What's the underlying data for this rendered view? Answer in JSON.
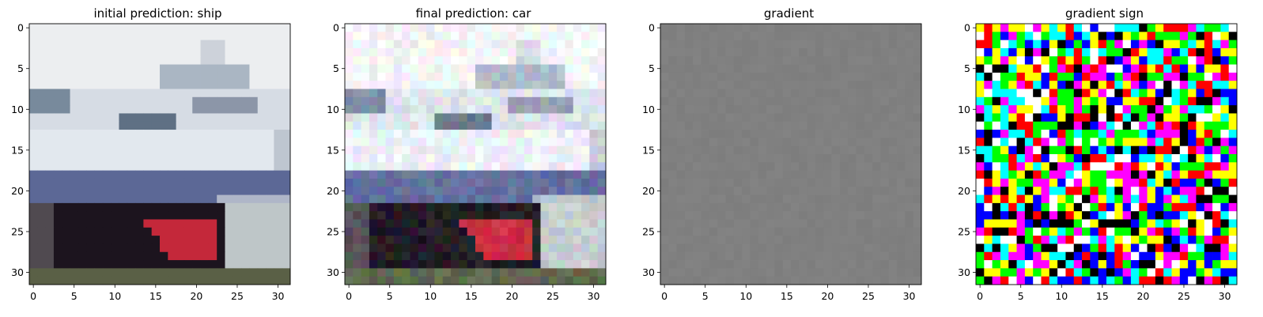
{
  "chart_data": [
    {
      "type": "heatmap",
      "title": "initial prediction: ship",
      "xlabel": "",
      "ylabel": "",
      "xlim": [
        -0.5,
        31.5
      ],
      "ylim": [
        31.5,
        -0.5
      ],
      "xticks": [
        "0",
        "5",
        "10",
        "15",
        "20",
        "25",
        "30"
      ],
      "yticks": [
        "0",
        "5",
        "10",
        "15",
        "20",
        "25",
        "30"
      ],
      "image_size": [
        32,
        32
      ],
      "content": "photo of a ship (white/blue hull, red bow)"
    },
    {
      "type": "heatmap",
      "title": "final prediction: car",
      "xlabel": "",
      "ylabel": "",
      "xlim": [
        -0.5,
        31.5
      ],
      "ylim": [
        31.5,
        -0.5
      ],
      "xticks": [
        "0",
        "5",
        "10",
        "15",
        "20",
        "25",
        "30"
      ],
      "yticks": [
        "0",
        "5",
        "10",
        "15",
        "20",
        "25",
        "30"
      ],
      "image_size": [
        32,
        32
      ],
      "content": "perturbed ship photo with colored pixel noise"
    },
    {
      "type": "heatmap",
      "title": "gradient",
      "xlabel": "",
      "ylabel": "",
      "xlim": [
        -0.5,
        31.5
      ],
      "ylim": [
        31.5,
        -0.5
      ],
      "xticks": [
        "0",
        "5",
        "10",
        "15",
        "20",
        "25",
        "30"
      ],
      "yticks": [
        "0",
        "5",
        "10",
        "15",
        "20",
        "25",
        "30"
      ],
      "image_size": [
        32,
        32
      ],
      "content": "nearly uniform gray"
    },
    {
      "type": "heatmap",
      "title": "gradient sign",
      "xlabel": "",
      "ylabel": "",
      "xlim": [
        -0.5,
        31.5
      ],
      "ylim": [
        31.5,
        -0.5
      ],
      "xticks": [
        "0",
        "5",
        "10",
        "15",
        "20",
        "25",
        "30"
      ],
      "yticks": [
        "0",
        "5",
        "10",
        "15",
        "20",
        "25",
        "30"
      ],
      "image_size": [
        32,
        32
      ],
      "palette": [
        "#000000",
        "#ffffff",
        "#ff0000",
        "#00ff00",
        "#0000ff",
        "#ffff00",
        "#00ffff",
        "#ff00ff"
      ]
    }
  ]
}
